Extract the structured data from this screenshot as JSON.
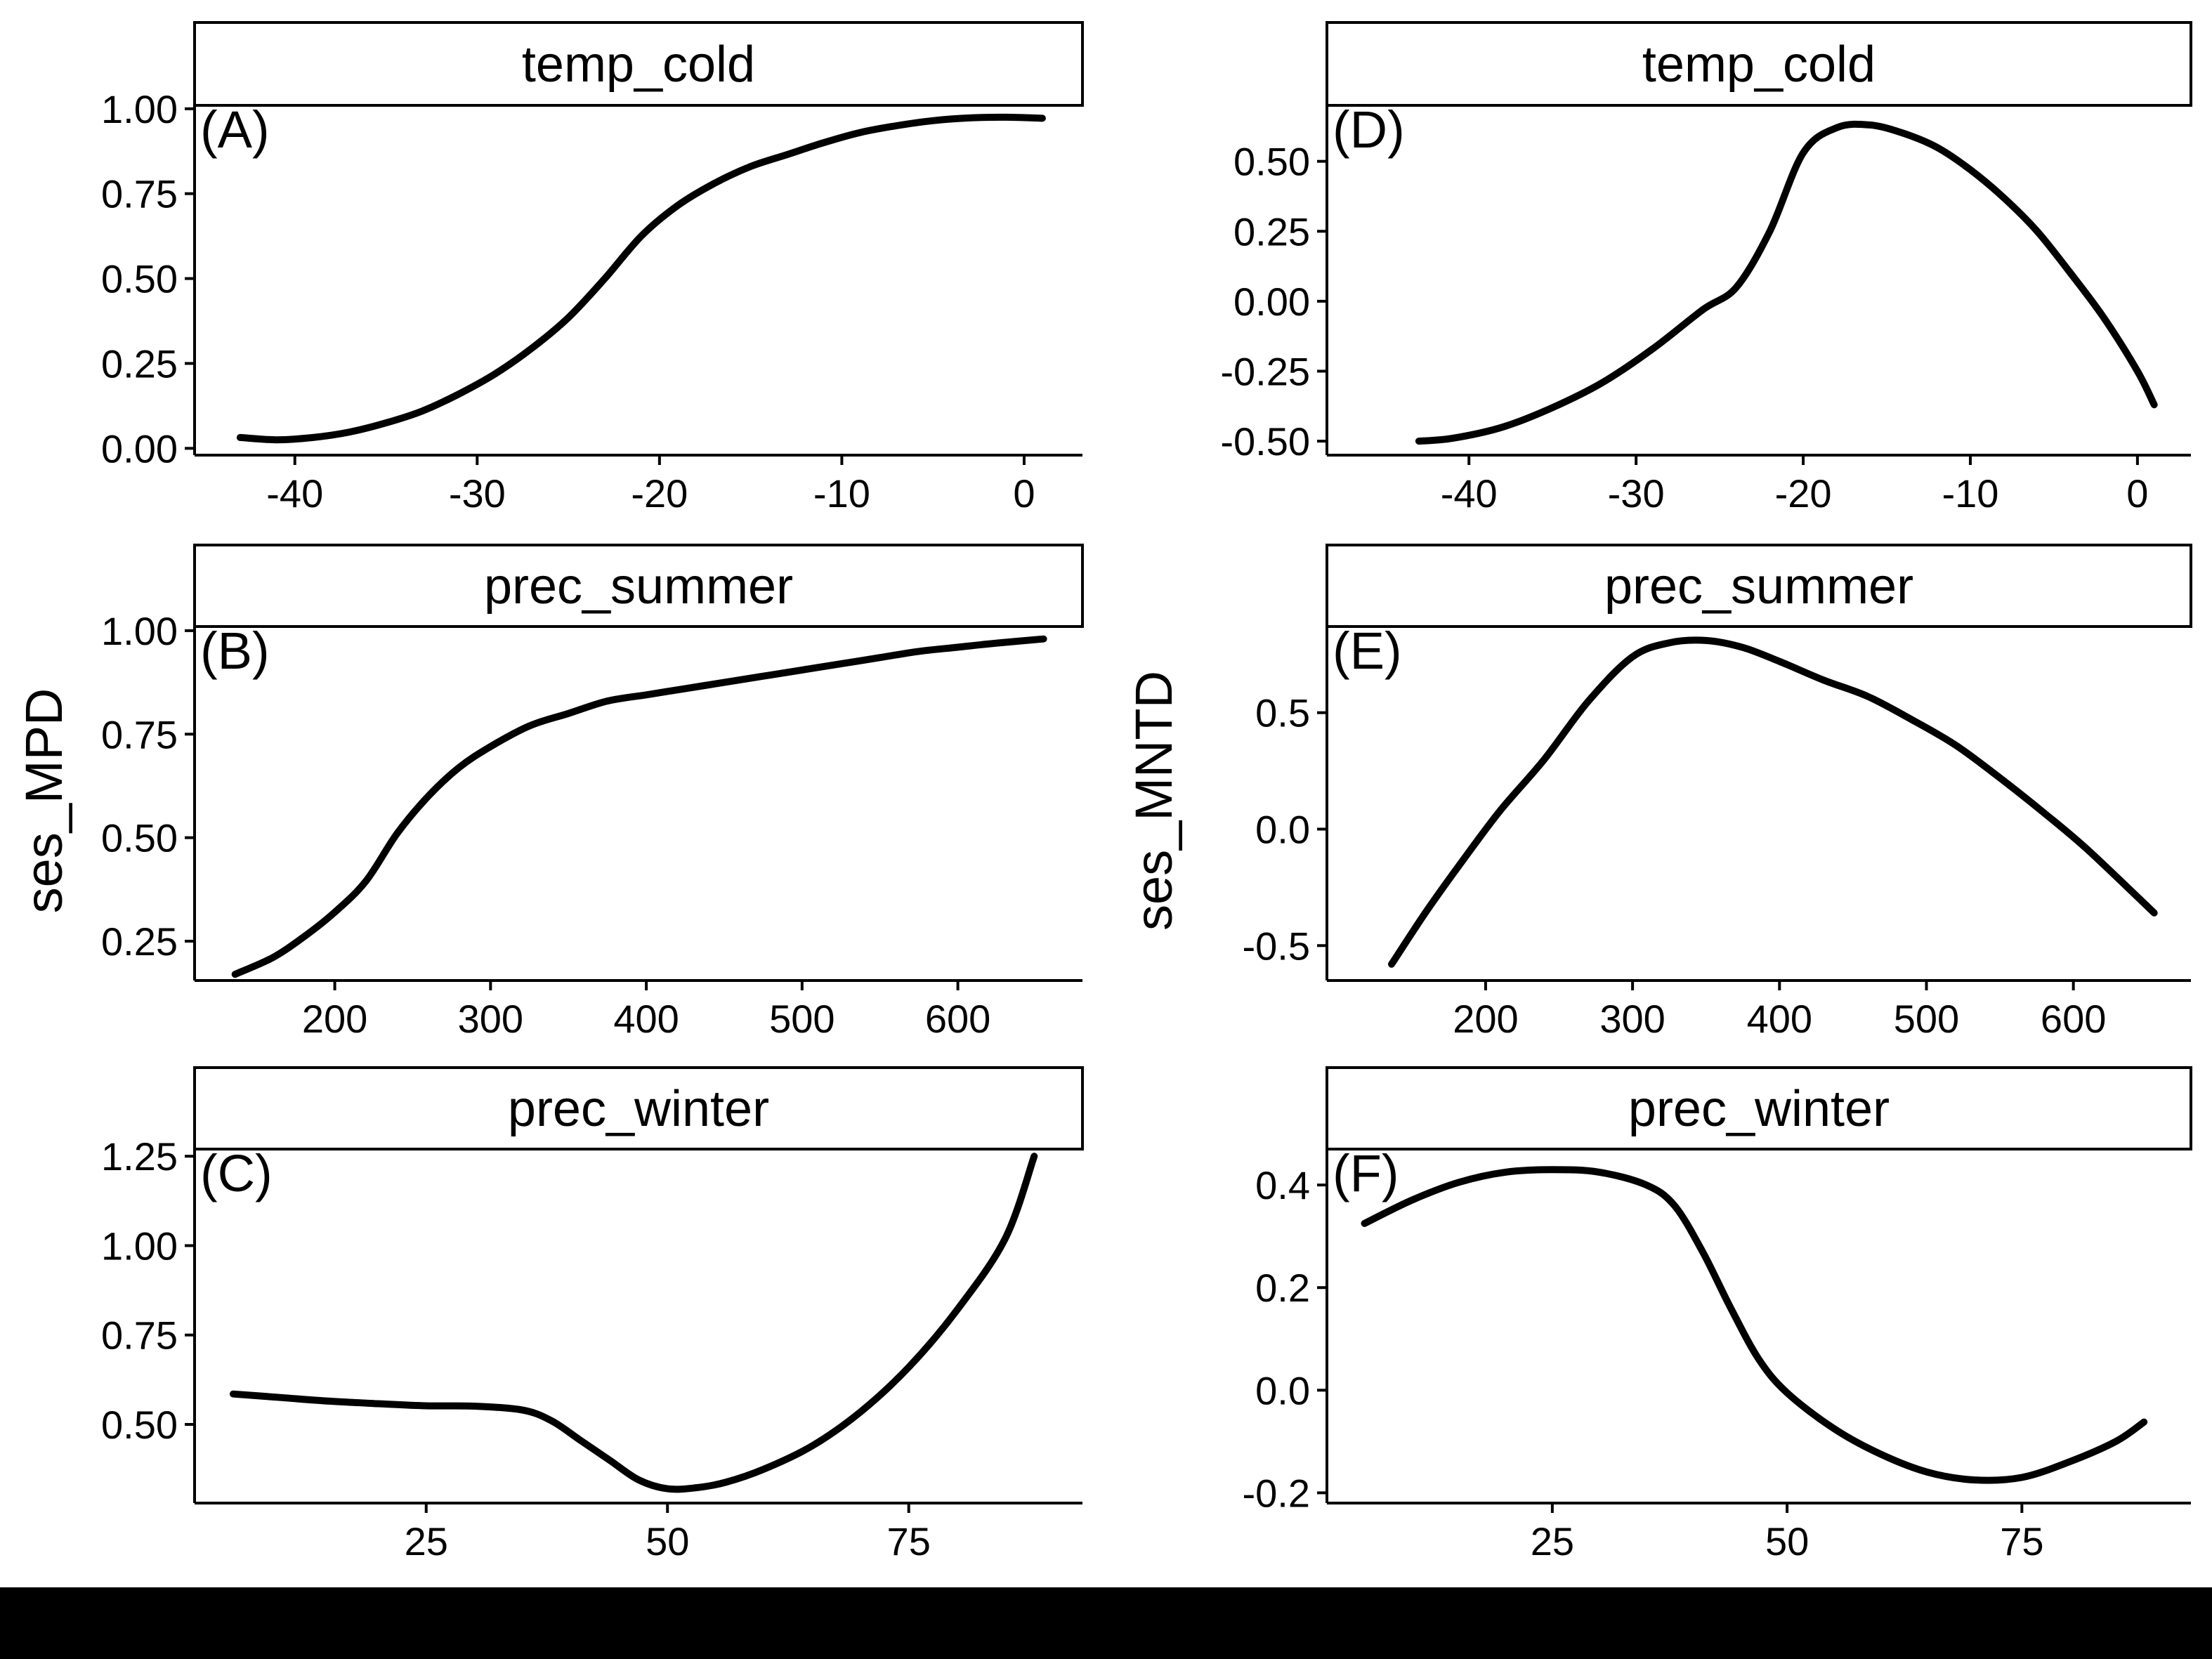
{
  "figure": {
    "ylabels": {
      "left": "ses_MPD",
      "right": "ses_MNTD"
    }
  },
  "chart_data": [
    {
      "type": "line",
      "panel": "(A)",
      "strip": "temp_cold",
      "ylabel_ref": "ses_MPD",
      "xlim": [
        -45.5,
        3.2
      ],
      "ylim": [
        -0.02,
        1.01
      ],
      "x_ticks": [
        -40,
        -30,
        -20,
        -10,
        0
      ],
      "x_tick_labels": [
        "-40",
        "-30",
        "-20",
        "-10",
        "0"
      ],
      "y_ticks": [
        0.0,
        0.25,
        0.5,
        0.75,
        1.0
      ],
      "y_tick_labels": [
        "0.00",
        "0.25",
        "0.50",
        "0.75",
        "1.00"
      ],
      "x": [
        -43,
        -41,
        -39,
        -37,
        -35,
        -33,
        -31,
        -29,
        -27,
        -25,
        -23,
        -21,
        -19,
        -17,
        -15,
        -13,
        -11,
        -9,
        -7,
        -5,
        -3,
        -1,
        1
      ],
      "y": [
        0.032,
        0.025,
        0.032,
        0.048,
        0.075,
        0.11,
        0.16,
        0.22,
        0.295,
        0.385,
        0.5,
        0.625,
        0.715,
        0.78,
        0.83,
        0.865,
        0.9,
        0.93,
        0.95,
        0.965,
        0.973,
        0.975,
        0.972
      ]
    },
    {
      "type": "line",
      "panel": "(B)",
      "strip": "prec_summer",
      "ylabel_ref": "ses_MPD",
      "xlim": [
        110,
        680
      ],
      "ylim": [
        0.155,
        1.01
      ],
      "x_ticks": [
        200,
        300,
        400,
        500,
        600
      ],
      "x_tick_labels": [
        "200",
        "300",
        "400",
        "500",
        "600"
      ],
      "y_ticks": [
        0.25,
        0.5,
        0.75,
        1.0
      ],
      "y_tick_labels": [
        "0.25",
        "0.50",
        "0.75",
        "1.00"
      ],
      "x": [
        136,
        160,
        180,
        200,
        220,
        240,
        260,
        280,
        300,
        325,
        350,
        375,
        400,
        425,
        450,
        475,
        500,
        525,
        550,
        575,
        600,
        625,
        655
      ],
      "y": [
        0.17,
        0.21,
        0.26,
        0.32,
        0.395,
        0.51,
        0.6,
        0.67,
        0.72,
        0.77,
        0.8,
        0.83,
        0.845,
        0.86,
        0.875,
        0.89,
        0.905,
        0.92,
        0.935,
        0.95,
        0.96,
        0.97,
        0.98
      ]
    },
    {
      "type": "line",
      "panel": "(C)",
      "strip": "prec_winter",
      "ylabel_ref": "ses_MPD",
      "xlim": [
        1,
        93
      ],
      "ylim": [
        0.28,
        1.27
      ],
      "x_ticks": [
        25,
        50,
        75
      ],
      "x_tick_labels": [
        "25",
        "50",
        "75"
      ],
      "y_ticks": [
        0.5,
        0.75,
        1.0,
        1.25
      ],
      "y_tick_labels": [
        "0.50",
        "0.75",
        "1.00",
        "1.25"
      ],
      "x": [
        5,
        10,
        15,
        20,
        25,
        30,
        35,
        38,
        41,
        44,
        47,
        50,
        53,
        56,
        60,
        65,
        70,
        75,
        80,
        85,
        88
      ],
      "y": [
        0.585,
        0.575,
        0.565,
        0.558,
        0.552,
        0.551,
        0.54,
        0.51,
        0.455,
        0.4,
        0.345,
        0.32,
        0.323,
        0.338,
        0.375,
        0.44,
        0.535,
        0.66,
        0.82,
        1.02,
        1.25
      ]
    },
    {
      "type": "line",
      "panel": "(D)",
      "strip": "temp_cold",
      "ylabel_ref": "ses_MNTD",
      "xlim": [
        -48.5,
        3.2
      ],
      "ylim": [
        -0.55,
        0.7
      ],
      "x_ticks": [
        -40,
        -30,
        -20,
        -10,
        0
      ],
      "x_tick_labels": [
        "-40",
        "-30",
        "-20",
        "-10",
        "0"
      ],
      "y_ticks": [
        -0.5,
        -0.25,
        0.0,
        0.25,
        0.5
      ],
      "y_tick_labels": [
        "-0.50",
        "-0.25",
        "0.00",
        "0.25",
        "0.50"
      ],
      "x": [
        -43,
        -41,
        -38,
        -35,
        -32,
        -29,
        -26,
        -24,
        -22,
        -20,
        -18,
        -16,
        -14,
        -12,
        -10,
        -8,
        -6,
        -4,
        -2,
        0,
        1
      ],
      "y": [
        -0.5,
        -0.49,
        -0.45,
        -0.38,
        -0.29,
        -0.17,
        -0.03,
        0.05,
        0.25,
        0.53,
        0.62,
        0.63,
        0.6,
        0.55,
        0.47,
        0.37,
        0.25,
        0.1,
        -0.06,
        -0.25,
        -0.37
      ]
    },
    {
      "type": "line",
      "panel": "(E)",
      "strip": "prec_summer",
      "ylabel_ref": "ses_MNTD",
      "xlim": [
        92,
        680
      ],
      "ylim": [
        -0.65,
        0.87
      ],
      "x_ticks": [
        200,
        300,
        400,
        500,
        600
      ],
      "x_tick_labels": [
        "200",
        "300",
        "400",
        "500",
        "600"
      ],
      "y_ticks": [
        -0.5,
        0.0,
        0.5
      ],
      "y_tick_labels": [
        "-0.5",
        "0.0",
        "0.5"
      ],
      "x": [
        136,
        160,
        185,
        210,
        240,
        270,
        300,
        325,
        350,
        375,
        400,
        430,
        460,
        490,
        520,
        550,
        580,
        610,
        655
      ],
      "y": [
        -0.58,
        -0.35,
        -0.13,
        0.08,
        0.3,
        0.55,
        0.74,
        0.8,
        0.81,
        0.78,
        0.72,
        0.64,
        0.57,
        0.47,
        0.36,
        0.22,
        0.07,
        -0.09,
        -0.36
      ]
    },
    {
      "type": "line",
      "panel": "(F)",
      "strip": "prec_winter",
      "ylabel_ref": "ses_MNTD",
      "xlim": [
        1,
        93
      ],
      "ylim": [
        -0.22,
        0.47
      ],
      "x_ticks": [
        25,
        50,
        75
      ],
      "x_tick_labels": [
        "25",
        "50",
        "75"
      ],
      "y_ticks": [
        -0.2,
        0.0,
        0.2,
        0.4
      ],
      "y_tick_labels": [
        "-0.2",
        "0.0",
        "0.2",
        "0.4"
      ],
      "x": [
        5,
        10,
        15,
        20,
        25,
        30,
        35,
        38,
        41,
        44,
        47,
        50,
        55,
        60,
        65,
        70,
        75,
        80,
        85,
        88
      ],
      "y": [
        0.325,
        0.37,
        0.405,
        0.425,
        0.43,
        0.425,
        0.4,
        0.36,
        0.27,
        0.16,
        0.06,
        -0.005,
        -0.075,
        -0.125,
        -0.16,
        -0.175,
        -0.17,
        -0.14,
        -0.1,
        -0.062
      ]
    }
  ]
}
